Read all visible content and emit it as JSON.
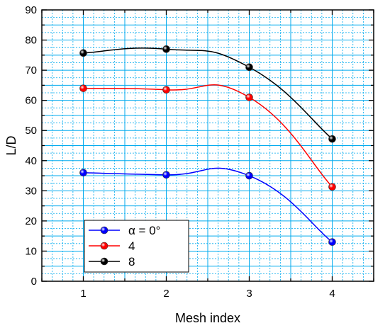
{
  "chart_data": {
    "type": "line",
    "x": [
      1,
      2,
      3,
      4
    ],
    "series": [
      {
        "name": "α = 0°",
        "values": [
          36,
          35.3,
          35,
          13
        ],
        "color": "#0000ff"
      },
      {
        "name": "4",
        "values": [
          64,
          63.5,
          61,
          31.3
        ],
        "color": "#ff0000"
      },
      {
        "name": "8",
        "values": [
          75.7,
          77,
          71,
          47.2
        ],
        "color": "#000000"
      }
    ],
    "xlabel": "Mesh  index",
    "ylabel": "L/D",
    "xlim": [
      0.5,
      4.5
    ],
    "ylim": [
      0,
      90
    ],
    "xticks": [
      1,
      2,
      3,
      4
    ],
    "yticks": [
      0,
      10,
      20,
      30,
      40,
      50,
      60,
      70,
      80,
      90
    ],
    "grid": true,
    "grid_color": "#00aaee",
    "legend_position": "bottom-left",
    "line_style": "smooth spline with sphere markers"
  }
}
